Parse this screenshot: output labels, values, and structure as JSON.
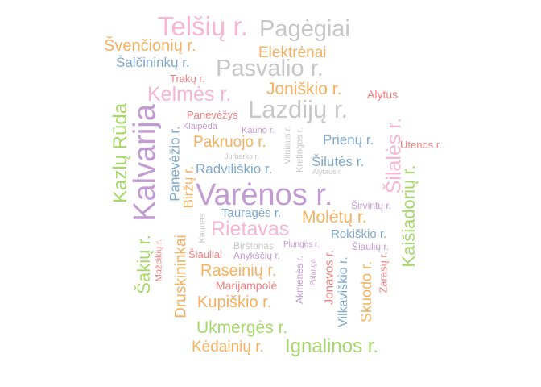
{
  "words": [
    {
      "text": "Varėnos r.",
      "color": "#c39bd3"
    },
    {
      "text": "Kalvarija",
      "color": "#c39bd3"
    },
    {
      "text": "Telšių r.",
      "color": "#f7b6d2"
    },
    {
      "text": "Pagėgiai",
      "color": "#c7c7c7"
    },
    {
      "text": "Pasvalio r.",
      "color": "#c7c7c7"
    },
    {
      "text": "Lazdijų r.",
      "color": "#c7c7c7"
    },
    {
      "text": "Kelmės r.",
      "color": "#f7b6d2"
    },
    {
      "text": "Elektrėnai",
      "color": "#f5b060"
    },
    {
      "text": "Švenčionių r.",
      "color": "#f5b060"
    },
    {
      "text": "Šalčininkų r.",
      "color": "#7fa9cf"
    },
    {
      "text": "Joniškio r.",
      "color": "#f5b060"
    },
    {
      "text": "Alytus",
      "color": "#f08080"
    },
    {
      "text": "Trakų r.",
      "color": "#f08080"
    },
    {
      "text": "Kazlų Rūda",
      "color": "#a6d86b"
    },
    {
      "text": "Panevėžys",
      "color": "#f08080"
    },
    {
      "text": "Klaipėda",
      "color": "#c39bd3"
    },
    {
      "text": "Kauno r.",
      "color": "#c39bd3"
    },
    {
      "text": "Pakruojo r.",
      "color": "#f5b060"
    },
    {
      "text": "Prienų r.",
      "color": "#7fa9cf"
    },
    {
      "text": "Utenos r.",
      "color": "#f08080"
    },
    {
      "text": "Šilalės r.",
      "color": "#f7b6d2"
    },
    {
      "text": "Jurbarko r.",
      "color": "#c7c7c7"
    },
    {
      "text": "Radviliškio r.",
      "color": "#7fa9cf"
    },
    {
      "text": "Šilutės r.",
      "color": "#7fa9cf"
    },
    {
      "text": "Alytaus r.",
      "color": "#c7c7c7"
    },
    {
      "text": "Kaišiadorių r.",
      "color": "#a6d86b"
    },
    {
      "text": "Vilniaus r.",
      "color": "#c7c7c7"
    },
    {
      "text": "Kretingos r.",
      "color": "#c7c7c7"
    },
    {
      "text": "Panevėžio r.",
      "color": "#7fa9cf"
    },
    {
      "text": "Biržų r.",
      "color": "#f5b060"
    },
    {
      "text": "Tauragės r.",
      "color": "#7fa9cf"
    },
    {
      "text": "Molėtų r.",
      "color": "#f5b060"
    },
    {
      "text": "Širvintų r.",
      "color": "#c39bd3"
    },
    {
      "text": "Rietavas",
      "color": "#f7b6d2"
    },
    {
      "text": "Rokiškio r.",
      "color": "#7fa9cf"
    },
    {
      "text": "Kaunas",
      "color": "#c7c7c7"
    },
    {
      "text": "Birštonas",
      "color": "#c7c7c7"
    },
    {
      "text": "Plungės r.",
      "color": "#c39bd3"
    },
    {
      "text": "Šiaulių r.",
      "color": "#c39bd3"
    },
    {
      "text": "Šakių r.",
      "color": "#a6d86b"
    },
    {
      "text": "Mažeikių r.",
      "color": "#f08080"
    },
    {
      "text": "Druskininkai",
      "color": "#f5b060"
    },
    {
      "text": "Šiauliai",
      "color": "#f08080"
    },
    {
      "text": "Anykščių r.",
      "color": "#c39bd3"
    },
    {
      "text": "Raseinių r.",
      "color": "#f5b060"
    },
    {
      "text": "Akmenės r.",
      "color": "#c39bd3"
    },
    {
      "text": "Palanga",
      "color": "#c39bd3"
    },
    {
      "text": "Jonavos r.",
      "color": "#f08080"
    },
    {
      "text": "Vilkaviškio r.",
      "color": "#7fa9cf"
    },
    {
      "text": "Skuodo r.",
      "color": "#f5b060"
    },
    {
      "text": "Zarasų r.",
      "color": "#f08080"
    },
    {
      "text": "Marijampolė",
      "color": "#f08080"
    },
    {
      "text": "Kupiškio r.",
      "color": "#f5b060"
    },
    {
      "text": "Ukmergės r.",
      "color": "#a6d86b"
    },
    {
      "text": "Kėdainių r.",
      "color": "#f5b060"
    },
    {
      "text": "Ignalinos r.",
      "color": "#a6d86b"
    }
  ]
}
